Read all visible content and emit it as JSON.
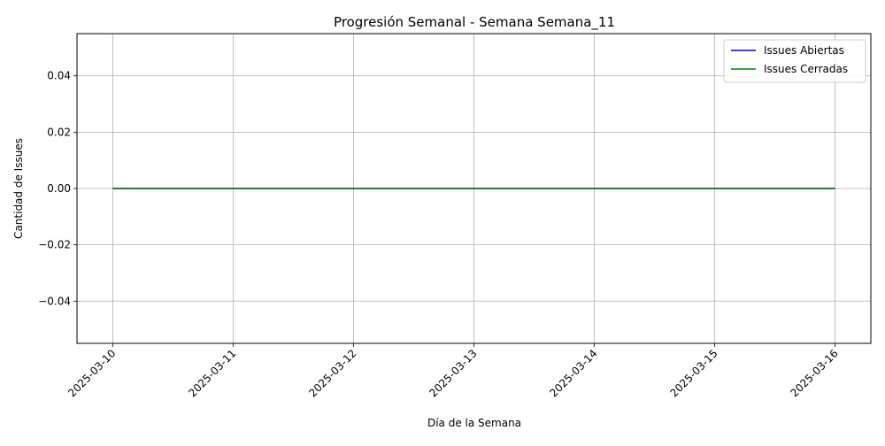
{
  "chart_data": {
    "type": "line",
    "title": "Progresión Semanal - Semana Semana_11",
    "xlabel": "Día de la Semana",
    "ylabel": "Cantidad de Issues",
    "x": [
      "2025-03-10",
      "2025-03-11",
      "2025-03-12",
      "2025-03-13",
      "2025-03-14",
      "2025-03-15",
      "2025-03-16"
    ],
    "y_ticks": [
      "−0.04",
      "−0.02",
      "0.00",
      "0.02",
      "0.04"
    ],
    "ylim": [
      -0.055,
      0.055
    ],
    "grid": true,
    "legend_position": "top-right",
    "series": [
      {
        "name": "Issues Abiertas",
        "values": [
          0,
          0,
          0,
          0,
          0,
          0,
          0
        ],
        "color": "#0000cc"
      },
      {
        "name": "Issues Cerradas",
        "values": [
          0,
          0,
          0,
          0,
          0,
          0,
          0
        ],
        "color": "#008000"
      }
    ]
  }
}
